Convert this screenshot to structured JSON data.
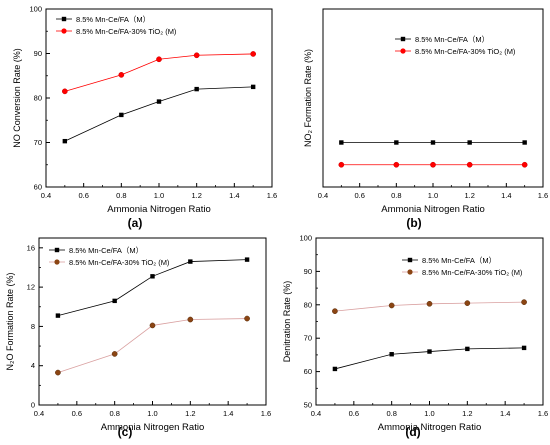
{
  "figure": {
    "panel_captions": [
      "(a)",
      "(b)",
      "(c)",
      "(d)"
    ]
  },
  "chart_data": [
    {
      "type": "line",
      "panel": "(a)",
      "xlabel": "Ammonia Nitrogen Ratio",
      "ylabel": "NO Conversion Rate (%)",
      "xlim": [
        0.4,
        1.6
      ],
      "ylim": [
        60,
        100
      ],
      "xticks": [
        "0.4",
        "0.6",
        "0.8",
        "1.0",
        "1.2",
        "1.4",
        "1.6"
      ],
      "yticks": [
        "60",
        "70",
        "80",
        "90",
        "100"
      ],
      "grid": false,
      "legend": "top-left",
      "x": [
        0.5,
        0.8,
        1.0,
        1.2,
        1.5
      ],
      "series": [
        {
          "name": "8.5% Mn-Ce/FA（M）",
          "marker": "square",
          "color": "#000000",
          "values": [
            70.3,
            76.2,
            79.2,
            82.0,
            82.5
          ]
        },
        {
          "name": "8.5% Mn-Ce/FA-30% TiO₂ (M)",
          "marker": "circle",
          "color": "#ff0000",
          "values": [
            81.5,
            85.2,
            88.7,
            89.6,
            89.9
          ]
        }
      ]
    },
    {
      "type": "line",
      "panel": "(b)",
      "xlabel": "Ammonia Nitrogen Ratio",
      "ylabel": "NO₂ Formation Rate (%)",
      "xlim": [
        0.4,
        1.6
      ],
      "xticks": [
        "0.4",
        "0.6",
        "0.8",
        "1.0",
        "1.2",
        "1.4",
        "1.6"
      ],
      "yticks": [],
      "grid": false,
      "legend": "top-right",
      "x": [
        0.5,
        0.8,
        1.0,
        1.2,
        1.5
      ],
      "series": [
        {
          "name": "8.5% Mn-Ce/FA（M）",
          "marker": "square",
          "color": "#000000",
          "values": [
            0.6,
            0.6,
            0.6,
            0.6,
            0.6
          ]
        },
        {
          "name": "8.5% Mn-Ce/FA-30% TiO₂ (M)",
          "marker": "circle",
          "color": "#ff0000",
          "values": [
            0.4,
            0.4,
            0.4,
            0.4,
            0.4
          ]
        }
      ]
    },
    {
      "type": "line",
      "panel": "(c)",
      "xlabel": "Ammonia Nitrogen Ratio",
      "ylabel": "N₂O Formation Rate (%)",
      "xlim": [
        0.4,
        1.6
      ],
      "ylim": [
        0,
        17
      ],
      "xticks": [
        "0.4",
        "0.6",
        "0.8",
        "1.0",
        "1.2",
        "1.4",
        "1.6"
      ],
      "yticks": [
        "0",
        "4",
        "8",
        "12",
        "16"
      ],
      "grid": false,
      "legend": "top-left",
      "x": [
        0.5,
        0.8,
        1.0,
        1.2,
        1.5
      ],
      "series": [
        {
          "name": "8.5% Mn-Ce/FA（M）",
          "marker": "square",
          "color": "#000000",
          "values": [
            9.1,
            10.6,
            13.1,
            14.6,
            14.8
          ]
        },
        {
          "name": "8.5% Mn-Ce/FA-30% TiO₂ (M)",
          "marker": "circle",
          "color": "#8b4513",
          "values": [
            3.3,
            5.2,
            8.1,
            8.7,
            8.8
          ]
        }
      ]
    },
    {
      "type": "scatter",
      "panel": "(d)",
      "xlabel": "Ammonia Nitrogen Ratio",
      "ylabel": "Denitration Rate (%)",
      "xlim": [
        0.4,
        1.6
      ],
      "ylim": [
        50,
        100
      ],
      "xticks": [
        "0.4",
        "0.6",
        "0.8",
        "1.0",
        "1.2",
        "1.4",
        "1.6"
      ],
      "yticks": [
        "50",
        "60",
        "70",
        "80",
        "90",
        "100"
      ],
      "grid": false,
      "legend": "top-right",
      "x": [
        0.5,
        0.8,
        1.0,
        1.2,
        1.5
      ],
      "series": [
        {
          "name": "8.5% Mn-Ce/FA（M）",
          "marker": "square",
          "color": "#000000",
          "values": [
            60.8,
            65.2,
            66.0,
            66.8,
            67.1
          ]
        },
        {
          "name": "8.5% Mn-Ce/FA-30% TiO₂ (M)",
          "marker": "circle",
          "color": "#8b4513",
          "values": [
            78.1,
            79.8,
            80.3,
            80.5,
            80.8
          ]
        }
      ]
    }
  ]
}
